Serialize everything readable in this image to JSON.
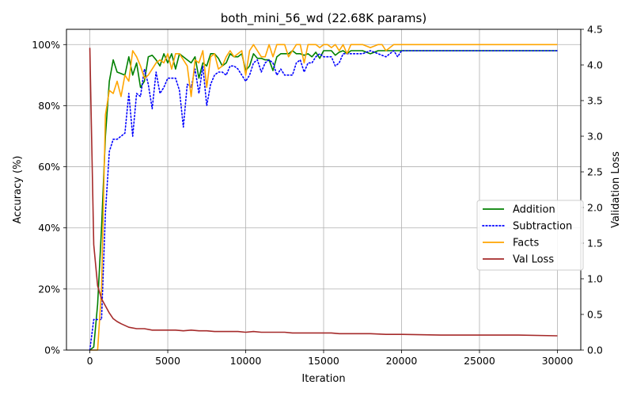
{
  "chart_data": {
    "type": "line",
    "title": "both_mini_56_wd (22.68K params)",
    "xlabel": "Iteration",
    "ylabel_left": "Accuracy (%)",
    "ylabel_right": "Validation Loss",
    "xlim": [
      -1500,
      31500
    ],
    "ylim_left": [
      0,
      1.05
    ],
    "ylim_right": [
      0,
      4.5
    ],
    "x_ticks": [
      0,
      5000,
      10000,
      15000,
      20000,
      25000,
      30000
    ],
    "x_tick_labels": [
      "0",
      "5000",
      "10000",
      "15000",
      "20000",
      "25000",
      "30000"
    ],
    "y_left_ticks": [
      0,
      0.2,
      0.4,
      0.6,
      0.8,
      1.0
    ],
    "y_left_tick_labels": [
      "0%",
      "20%",
      "40%",
      "60%",
      "80%",
      "100%"
    ],
    "y_right_ticks": [
      0,
      0.5,
      1.0,
      1.5,
      2.0,
      2.5,
      3.0,
      3.5,
      4.0,
      4.5
    ],
    "y_right_tick_labels": [
      "0.0",
      "0.5",
      "1.0",
      "1.5",
      "2.0",
      "2.5",
      "3.0",
      "3.5",
      "4.0",
      "4.5"
    ],
    "grid": true,
    "legend_position": "center-right",
    "series": [
      {
        "name": "Addition",
        "axis": "left",
        "color": "#008000",
        "dash": "solid",
        "x": [
          0,
          250,
          500,
          750,
          1000,
          1250,
          1500,
          1750,
          2000,
          2250,
          2500,
          2750,
          3000,
          3250,
          3500,
          3750,
          4000,
          4250,
          4500,
          4750,
          5000,
          5250,
          5500,
          5750,
          6000,
          6250,
          6500,
          6750,
          7000,
          7250,
          7500,
          7750,
          8000,
          8250,
          8500,
          8750,
          9000,
          9250,
          9500,
          9750,
          10000,
          10250,
          10500,
          10750,
          11000,
          11250,
          11500,
          11750,
          12000,
          12250,
          12500,
          12750,
          13000,
          13250,
          13500,
          13750,
          14000,
          14250,
          14500,
          14750,
          15000,
          15250,
          15500,
          15750,
          16000,
          16250,
          16500,
          16750,
          17000,
          17500,
          18000,
          18500,
          19000,
          19500,
          20000,
          25000,
          30000
        ],
        "values": [
          0.0,
          0.01,
          0.15,
          0.4,
          0.7,
          0.88,
          0.95,
          0.91,
          0.905,
          0.9,
          0.96,
          0.9,
          0.94,
          0.86,
          0.88,
          0.96,
          0.965,
          0.95,
          0.93,
          0.97,
          0.94,
          0.97,
          0.92,
          0.97,
          0.96,
          0.95,
          0.94,
          0.96,
          0.89,
          0.94,
          0.93,
          0.97,
          0.97,
          0.955,
          0.93,
          0.94,
          0.97,
          0.96,
          0.96,
          0.97,
          0.915,
          0.93,
          0.97,
          0.955,
          0.955,
          0.95,
          0.95,
          0.915,
          0.96,
          0.97,
          0.97,
          0.97,
          0.98,
          0.97,
          0.97,
          0.965,
          0.97,
          0.96,
          0.975,
          0.955,
          0.98,
          0.98,
          0.98,
          0.965,
          0.975,
          0.98,
          0.97,
          0.98,
          0.98,
          0.98,
          0.97,
          0.98,
          0.98,
          0.98,
          0.98,
          0.98,
          0.98
        ]
      },
      {
        "name": "Subtraction",
        "axis": "left",
        "color": "#0000ff",
        "dash": "dotted",
        "x": [
          0,
          250,
          500,
          750,
          1000,
          1250,
          1500,
          1750,
          2000,
          2250,
          2500,
          2750,
          3000,
          3250,
          3500,
          3750,
          4000,
          4250,
          4500,
          4750,
          5000,
          5250,
          5500,
          5750,
          6000,
          6250,
          6500,
          6750,
          7000,
          7250,
          7500,
          7750,
          8000,
          8250,
          8500,
          8750,
          9000,
          9250,
          9500,
          9750,
          10000,
          10250,
          10500,
          10750,
          11000,
          11250,
          11500,
          11750,
          12000,
          12250,
          12500,
          12750,
          13000,
          13250,
          13500,
          13750,
          14000,
          14250,
          14500,
          14750,
          15000,
          15250,
          15500,
          15750,
          16000,
          16250,
          16500,
          16750,
          17000,
          17500,
          18000,
          18500,
          19000,
          19500,
          19750,
          20000,
          25000,
          30000
        ],
        "values": [
          0.0,
          0.1,
          0.1,
          0.1,
          0.45,
          0.65,
          0.69,
          0.69,
          0.7,
          0.71,
          0.84,
          0.7,
          0.84,
          0.83,
          0.92,
          0.87,
          0.79,
          0.91,
          0.84,
          0.86,
          0.89,
          0.89,
          0.89,
          0.85,
          0.73,
          0.87,
          0.86,
          0.92,
          0.84,
          0.93,
          0.8,
          0.87,
          0.9,
          0.91,
          0.91,
          0.9,
          0.93,
          0.93,
          0.92,
          0.9,
          0.88,
          0.9,
          0.94,
          0.95,
          0.91,
          0.94,
          0.95,
          0.94,
          0.9,
          0.92,
          0.9,
          0.9,
          0.9,
          0.94,
          0.95,
          0.91,
          0.94,
          0.94,
          0.96,
          0.97,
          0.96,
          0.96,
          0.96,
          0.93,
          0.94,
          0.97,
          0.97,
          0.97,
          0.97,
          0.97,
          0.98,
          0.97,
          0.96,
          0.98,
          0.96,
          0.98,
          0.98,
          0.98
        ]
      },
      {
        "name": "Facts",
        "axis": "left",
        "color": "#ffa500",
        "dash": "solid",
        "x": [
          0,
          250,
          500,
          750,
          1000,
          1250,
          1500,
          1750,
          2000,
          2250,
          2500,
          2750,
          3000,
          3250,
          3500,
          3750,
          4000,
          4250,
          4500,
          4750,
          5000,
          5250,
          5500,
          5750,
          6000,
          6250,
          6500,
          6750,
          7000,
          7250,
          7500,
          7750,
          8000,
          8250,
          8500,
          8750,
          9000,
          9250,
          9500,
          9750,
          10000,
          10250,
          10500,
          10750,
          11000,
          11250,
          11500,
          11750,
          12000,
          12250,
          12500,
          12750,
          13000,
          13250,
          13500,
          13750,
          14000,
          14250,
          14500,
          14750,
          15000,
          15250,
          15500,
          15750,
          16000,
          16250,
          16500,
          16750,
          17000,
          17500,
          18000,
          18500,
          18750,
          19000,
          19500,
          20000,
          25000,
          30000
        ],
        "values": [
          0.0,
          0.0,
          0.0,
          0.2,
          0.77,
          0.85,
          0.84,
          0.88,
          0.83,
          0.9,
          0.88,
          0.98,
          0.96,
          0.93,
          0.89,
          0.9,
          0.92,
          0.94,
          0.95,
          0.94,
          0.97,
          0.92,
          0.97,
          0.97,
          0.95,
          0.93,
          0.83,
          0.95,
          0.94,
          0.98,
          0.86,
          0.96,
          0.97,
          0.92,
          0.93,
          0.96,
          0.98,
          0.96,
          0.97,
          0.98,
          0.9,
          0.98,
          1.0,
          0.98,
          0.96,
          0.96,
          1.0,
          0.96,
          1.0,
          1.0,
          1.0,
          0.96,
          0.98,
          1.0,
          1.0,
          0.94,
          1.0,
          1.0,
          1.0,
          0.99,
          1.0,
          1.0,
          0.99,
          1.0,
          0.98,
          1.0,
          0.97,
          1.0,
          1.0,
          1.0,
          0.99,
          1.0,
          1.0,
          0.98,
          1.0,
          1.0,
          1.0,
          1.0
        ]
      },
      {
        "name": "Val Loss",
        "axis": "right",
        "color": "#a52a2a",
        "dash": "solid",
        "x": [
          0,
          250,
          500,
          750,
          1000,
          1250,
          1500,
          1750,
          2000,
          2500,
          3000,
          3500,
          4000,
          4500,
          5000,
          5500,
          6000,
          6500,
          7000,
          7500,
          8000,
          8500,
          9000,
          9500,
          10000,
          10500,
          11000,
          11500,
          12000,
          12500,
          13000,
          13500,
          14000,
          14500,
          15000,
          15500,
          16000,
          17000,
          18000,
          19000,
          20000,
          22500,
          25000,
          27500,
          30000
        ],
        "values": [
          4.24,
          1.48,
          0.9,
          0.72,
          0.62,
          0.52,
          0.44,
          0.4,
          0.37,
          0.32,
          0.3,
          0.3,
          0.28,
          0.28,
          0.28,
          0.28,
          0.27,
          0.28,
          0.27,
          0.27,
          0.26,
          0.26,
          0.26,
          0.26,
          0.25,
          0.26,
          0.25,
          0.25,
          0.25,
          0.25,
          0.24,
          0.24,
          0.24,
          0.24,
          0.24,
          0.24,
          0.23,
          0.23,
          0.23,
          0.22,
          0.22,
          0.21,
          0.21,
          0.21,
          0.2
        ]
      }
    ]
  }
}
